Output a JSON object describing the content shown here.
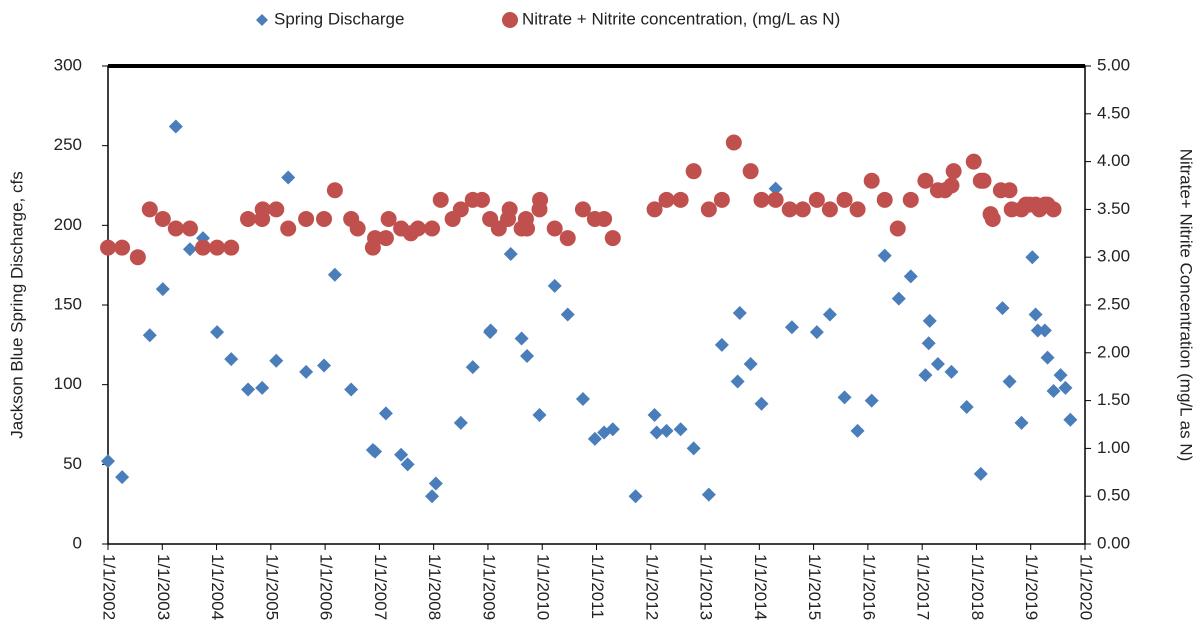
{
  "chart_data": {
    "type": "scatter",
    "y_label": "Jackson Blue Spring Discharge, cfs",
    "y2_label": "Nitrate+ Nitrite Concentration (mg/L as N)",
    "xlim": [
      2002,
      2020
    ],
    "xticks": [
      {
        "value": 2002,
        "label": "1/1/2002"
      },
      {
        "value": 2003,
        "label": "1/1/2003"
      },
      {
        "value": 2004,
        "label": "1/1/2004"
      },
      {
        "value": 2005,
        "label": "1/1/2005"
      },
      {
        "value": 2006,
        "label": "1/1/2006"
      },
      {
        "value": 2007,
        "label": "1/1/2007"
      },
      {
        "value": 2008,
        "label": "1/1/2008"
      },
      {
        "value": 2009,
        "label": "1/1/2009"
      },
      {
        "value": 2010,
        "label": "1/1/2010"
      },
      {
        "value": 2011,
        "label": "1/1/2011"
      },
      {
        "value": 2012,
        "label": "1/1/2012"
      },
      {
        "value": 2013,
        "label": "1/1/2013"
      },
      {
        "value": 2014,
        "label": "1/1/2014"
      },
      {
        "value": 2015,
        "label": "1/1/2015"
      },
      {
        "value": 2016,
        "label": "1/1/2016"
      },
      {
        "value": 2017,
        "label": "1/1/2017"
      },
      {
        "value": 2018,
        "label": "1/1/2018"
      },
      {
        "value": 2019,
        "label": "1/1/2019"
      },
      {
        "value": 2020,
        "label": "1/1/2020"
      }
    ],
    "ylim": [
      0,
      300
    ],
    "yticks": [
      0,
      50,
      100,
      150,
      200,
      250,
      300
    ],
    "y2lim": [
      0,
      5
    ],
    "y2ticks": [
      {
        "value": 0,
        "label": "0.00"
      },
      {
        "value": 0.5,
        "label": "0.50"
      },
      {
        "value": 1,
        "label": "1.00"
      },
      {
        "value": 1.5,
        "label": "1.50"
      },
      {
        "value": 2,
        "label": "2.00"
      },
      {
        "value": 2.5,
        "label": "2.50"
      },
      {
        "value": 3,
        "label": "3.00"
      },
      {
        "value": 3.5,
        "label": "3.50"
      },
      {
        "value": 4,
        "label": "4.00"
      },
      {
        "value": 4.5,
        "label": "4.50"
      },
      {
        "value": 5,
        "label": "5.00"
      }
    ],
    "grid": false,
    "legend": "top",
    "series": [
      {
        "name": "Spring Discharge",
        "color": "#4a7ebb",
        "marker": "diamond",
        "axis": "y",
        "x": [
          2002.0,
          2002.26,
          2002.77,
          2003.01,
          2003.25,
          2003.51,
          2003.75,
          2004.01,
          2004.27,
          2004.58,
          2004.84,
          2005.1,
          2005.32,
          2005.65,
          2005.98,
          2006.18,
          2006.48,
          2006.88,
          2006.92,
          2007.12,
          2007.4,
          2007.52,
          2007.97,
          2008.04,
          2008.5,
          2008.72,
          2009.04,
          2009.05,
          2009.42,
          2009.62,
          2009.72,
          2009.95,
          2010.23,
          2010.47,
          2010.75,
          2010.97,
          2011.14,
          2011.3,
          2011.72,
          2012.07,
          2012.11,
          2012.29,
          2012.55,
          2012.79,
          2013.07,
          2013.31,
          2013.6,
          2013.64,
          2013.84,
          2014.04,
          2014.3,
          2014.6,
          2015.06,
          2015.3,
          2015.57,
          2015.81,
          2016.07,
          2016.31,
          2016.57,
          2016.79,
          2017.06,
          2017.12,
          2017.14,
          2017.29,
          2017.54,
          2017.82,
          2018.08,
          2018.48,
          2018.61,
          2018.83,
          2019.03,
          2019.09,
          2019.13,
          2019.26,
          2019.31,
          2019.42,
          2019.55,
          2019.64,
          2019.73
        ],
        "values": [
          52,
          42,
          131,
          160,
          262,
          185,
          192,
          133,
          116,
          97,
          98,
          115,
          230,
          108,
          112,
          169,
          97,
          59,
          58,
          82,
          56,
          50,
          30,
          38,
          76,
          111,
          133,
          134,
          182,
          129,
          118,
          81,
          162,
          144,
          91,
          66,
          70,
          72,
          30,
          81,
          70,
          71,
          72,
          60,
          31,
          125,
          102,
          145,
          113,
          88,
          223,
          136,
          133,
          144,
          92,
          71,
          90,
          181,
          154,
          168,
          106,
          126,
          140,
          113,
          108,
          86,
          44,
          148,
          102,
          76,
          180,
          144,
          134,
          134,
          117,
          96,
          106,
          98,
          78
        ]
      },
      {
        "name": "Nitrate + Nitrite concentration, (mg/L as N)",
        "color": "#c0504d",
        "marker": "circle",
        "axis": "y2",
        "x": [
          2002.0,
          2002.26,
          2002.55,
          2002.77,
          2003.01,
          2003.25,
          2003.51,
          2003.75,
          2004.01,
          2004.27,
          2004.58,
          2004.84,
          2004.85,
          2005.1,
          2005.32,
          2005.65,
          2005.98,
          2006.18,
          2006.48,
          2006.6,
          2006.88,
          2006.92,
          2007.12,
          2007.17,
          2007.4,
          2007.58,
          2007.71,
          2007.97,
          2008.13,
          2008.35,
          2008.5,
          2008.72,
          2008.89,
          2009.04,
          2009.2,
          2009.37,
          2009.4,
          2009.62,
          2009.7,
          2009.72,
          2009.95,
          2009.96,
          2010.23,
          2010.47,
          2010.75,
          2010.97,
          2011.14,
          2011.3,
          2012.07,
          2012.29,
          2012.55,
          2012.79,
          2013.07,
          2013.31,
          2013.53,
          2013.84,
          2014.04,
          2014.3,
          2014.56,
          2014.8,
          2015.06,
          2015.3,
          2015.57,
          2015.81,
          2016.07,
          2016.31,
          2016.55,
          2016.79,
          2017.06,
          2017.29,
          2017.42,
          2017.54,
          2017.58,
          2017.95,
          2018.08,
          2018.13,
          2018.26,
          2018.3,
          2018.45,
          2018.61,
          2018.65,
          2018.83,
          2018.91,
          2018.98,
          2019.09,
          2019.16,
          2019.26,
          2019.31,
          2019.42
        ],
        "values": [
          3.1,
          3.1,
          3.0,
          3.5,
          3.4,
          3.3,
          3.3,
          3.1,
          3.1,
          3.1,
          3.4,
          3.4,
          3.5,
          3.5,
          3.3,
          3.4,
          3.4,
          3.7,
          3.4,
          3.3,
          3.1,
          3.2,
          3.2,
          3.4,
          3.3,
          3.25,
          3.3,
          3.3,
          3.6,
          3.4,
          3.5,
          3.6,
          3.6,
          3.4,
          3.3,
          3.4,
          3.5,
          3.3,
          3.4,
          3.3,
          3.5,
          3.6,
          3.3,
          3.2,
          3.5,
          3.4,
          3.4,
          3.2,
          3.5,
          3.6,
          3.6,
          3.9,
          3.5,
          3.6,
          4.2,
          3.9,
          3.6,
          3.6,
          3.5,
          3.5,
          3.6,
          3.5,
          3.6,
          3.5,
          3.8,
          3.6,
          3.3,
          3.6,
          3.8,
          3.7,
          3.7,
          3.75,
          3.9,
          4.0,
          3.8,
          3.8,
          3.45,
          3.4,
          3.7,
          3.7,
          3.5,
          3.5,
          3.55,
          3.55,
          3.55,
          3.5,
          3.55,
          3.55,
          3.5
        ]
      }
    ]
  }
}
